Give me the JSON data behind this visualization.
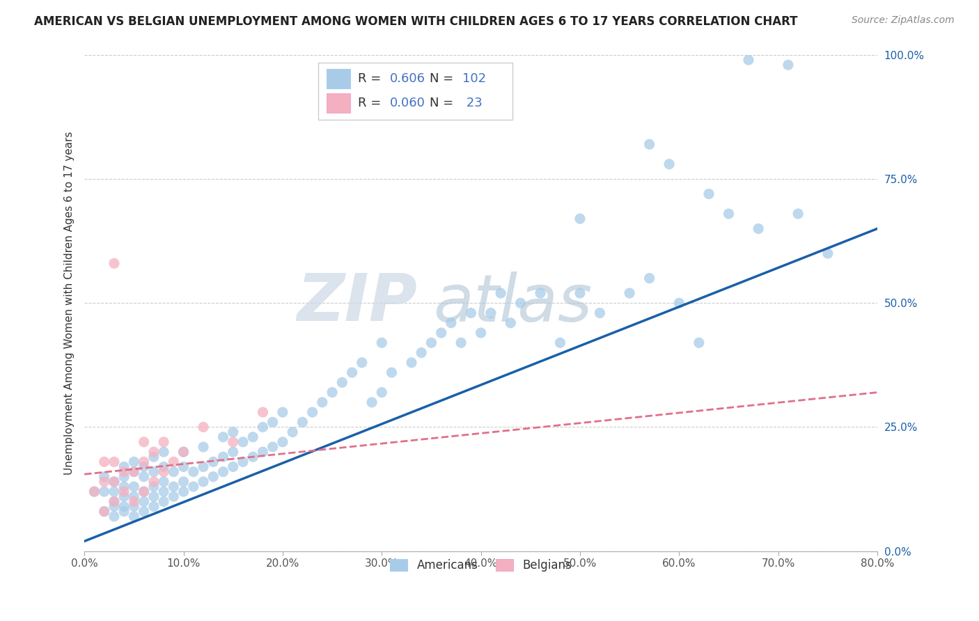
{
  "title": "AMERICAN VS BELGIAN UNEMPLOYMENT AMONG WOMEN WITH CHILDREN AGES 6 TO 17 YEARS CORRELATION CHART",
  "source": "Source: ZipAtlas.com",
  "ylabel_label": "Unemployment Among Women with Children Ages 6 to 17 years",
  "xlim": [
    0.0,
    0.8
  ],
  "ylim": [
    0.0,
    1.0
  ],
  "american_R": 0.606,
  "american_N": 102,
  "belgian_R": 0.06,
  "belgian_N": 23,
  "american_color": "#a8cce8",
  "belgian_color": "#f4b0c0",
  "american_line_color": "#1a5fa8",
  "belgian_line_color": "#e0708a",
  "watermark_zip_color": "#d0dce8",
  "watermark_atlas_color": "#b8ccd8",
  "legend_text_color": "#4472c4",
  "legend_R_eq_color": "#333333",
  "x_ticks": [
    0.0,
    0.1,
    0.2,
    0.3,
    0.4,
    0.5,
    0.6,
    0.7,
    0.8
  ],
  "y_ticks": [
    0.0,
    0.25,
    0.5,
    0.75,
    1.0
  ],
  "american_x": [
    0.01,
    0.02,
    0.02,
    0.02,
    0.03,
    0.03,
    0.03,
    0.03,
    0.03,
    0.04,
    0.04,
    0.04,
    0.04,
    0.04,
    0.04,
    0.05,
    0.05,
    0.05,
    0.05,
    0.05,
    0.05,
    0.06,
    0.06,
    0.06,
    0.06,
    0.06,
    0.07,
    0.07,
    0.07,
    0.07,
    0.07,
    0.08,
    0.08,
    0.08,
    0.08,
    0.08,
    0.09,
    0.09,
    0.09,
    0.1,
    0.1,
    0.1,
    0.1,
    0.11,
    0.11,
    0.12,
    0.12,
    0.12,
    0.13,
    0.13,
    0.14,
    0.14,
    0.14,
    0.15,
    0.15,
    0.15,
    0.16,
    0.16,
    0.17,
    0.17,
    0.18,
    0.18,
    0.19,
    0.19,
    0.2,
    0.2,
    0.21,
    0.22,
    0.23,
    0.24,
    0.25,
    0.26,
    0.27,
    0.28,
    0.29,
    0.3,
    0.3,
    0.31,
    0.33,
    0.34,
    0.35,
    0.36,
    0.37,
    0.38,
    0.39,
    0.4,
    0.41,
    0.42,
    0.43,
    0.44,
    0.46,
    0.48,
    0.5,
    0.52,
    0.55,
    0.57,
    0.6,
    0.62,
    0.65,
    0.68,
    0.72,
    0.75
  ],
  "american_y": [
    0.12,
    0.08,
    0.12,
    0.15,
    0.07,
    0.09,
    0.1,
    0.12,
    0.14,
    0.08,
    0.09,
    0.11,
    0.13,
    0.15,
    0.17,
    0.07,
    0.09,
    0.11,
    0.13,
    0.16,
    0.18,
    0.08,
    0.1,
    0.12,
    0.15,
    0.17,
    0.09,
    0.11,
    0.13,
    0.16,
    0.19,
    0.1,
    0.12,
    0.14,
    0.17,
    0.2,
    0.11,
    0.13,
    0.16,
    0.12,
    0.14,
    0.17,
    0.2,
    0.13,
    0.16,
    0.14,
    0.17,
    0.21,
    0.15,
    0.18,
    0.16,
    0.19,
    0.23,
    0.17,
    0.2,
    0.24,
    0.18,
    0.22,
    0.19,
    0.23,
    0.2,
    0.25,
    0.21,
    0.26,
    0.22,
    0.28,
    0.24,
    0.26,
    0.28,
    0.3,
    0.32,
    0.34,
    0.36,
    0.38,
    0.3,
    0.32,
    0.42,
    0.36,
    0.38,
    0.4,
    0.42,
    0.44,
    0.46,
    0.42,
    0.48,
    0.44,
    0.48,
    0.52,
    0.46,
    0.5,
    0.52,
    0.42,
    0.52,
    0.48,
    0.52,
    0.55,
    0.5,
    0.42,
    0.68,
    0.65,
    0.68,
    0.6
  ],
  "belgian_x": [
    0.01,
    0.02,
    0.02,
    0.02,
    0.03,
    0.03,
    0.03,
    0.04,
    0.04,
    0.05,
    0.05,
    0.06,
    0.06,
    0.06,
    0.07,
    0.07,
    0.08,
    0.08,
    0.09,
    0.1,
    0.12,
    0.15,
    0.18
  ],
  "belgian_y": [
    0.12,
    0.08,
    0.14,
    0.18,
    0.1,
    0.14,
    0.18,
    0.12,
    0.16,
    0.1,
    0.16,
    0.12,
    0.18,
    0.22,
    0.14,
    0.2,
    0.16,
    0.22,
    0.18,
    0.2,
    0.25,
    0.22,
    0.28
  ],
  "am_line_x0": 0.0,
  "am_line_y0": 0.02,
  "am_line_x1": 0.8,
  "am_line_y1": 0.65,
  "be_line_x0": 0.0,
  "be_line_y0": 0.155,
  "be_line_x1": 0.8,
  "be_line_y1": 0.32
}
